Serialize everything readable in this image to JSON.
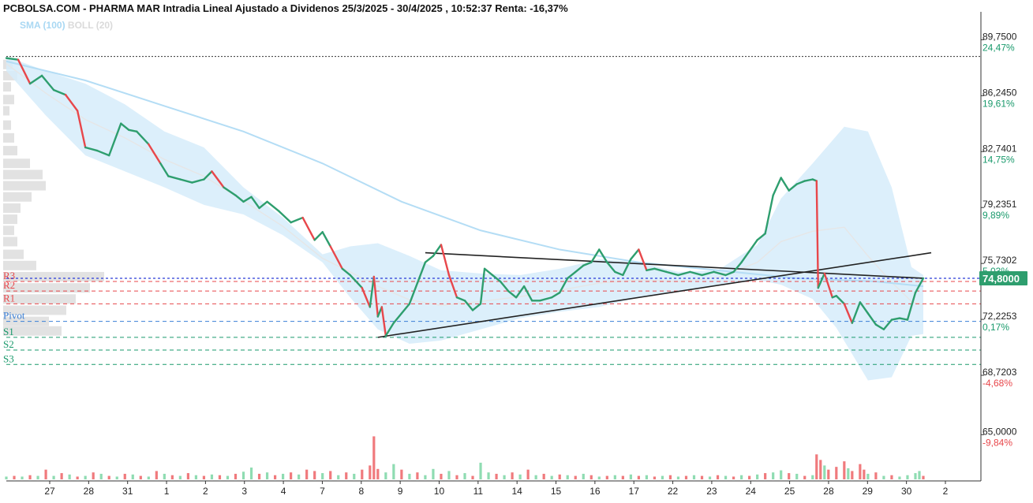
{
  "chart_data": {
    "type": "line",
    "title": "PCBOLSA.COM - PHARMA MAR Intradia Lineal Ajustado a Dividenos 25/3/2025 - 30/4/2025 , 10:52:37 Renta: -16,37%",
    "legend": {
      "sma": "SMA (100)",
      "boll": "BOLL (20)"
    },
    "ylim": [
      62.1,
      91.5
    ],
    "y_ticks": [
      {
        "value": 89.75,
        "label": "89,7500",
        "pct": "24,47%",
        "pct_color": "#1a9a6c"
      },
      {
        "value": 86.245,
        "label": "86,2450",
        "pct": "19,61%",
        "pct_color": "#1a9a6c"
      },
      {
        "value": 82.7401,
        "label": "82,7401",
        "pct": "14,75%",
        "pct_color": "#1a9a6c"
      },
      {
        "value": 79.2351,
        "label": "79,2351",
        "pct": "9,89%",
        "pct_color": "#1a9a6c"
      },
      {
        "value": 75.7302,
        "label": "75,7302",
        "pct": "5,03%",
        "pct_color": "#1a9a6c"
      },
      {
        "value": 72.2253,
        "label": "72,2253",
        "pct": "0,17%",
        "pct_color": "#1a9a6c"
      },
      {
        "value": 68.7203,
        "label": "68,7203",
        "pct": "-4,68%",
        "pct_color": "#e8474b"
      },
      {
        "value": 65.0,
        "label": "65,0000",
        "pct": "-9,84%",
        "pct_color": "#e8474b"
      }
    ],
    "last_price": {
      "value": 74.8,
      "label": "74,8000"
    },
    "reference_high": 88.7,
    "pivot_levels": [
      {
        "name": "R3",
        "value": 74.6,
        "color": "#e8474b"
      },
      {
        "name": "R2",
        "value": 74.0,
        "color": "#e8474b"
      },
      {
        "name": "R1",
        "value": 73.2,
        "color": "#e8474b"
      },
      {
        "name": "Pivot",
        "value": 72.1,
        "color": "#3a7fd6"
      },
      {
        "name": "S1",
        "value": 71.1,
        "color": "#1a9a6c"
      },
      {
        "name": "S2",
        "value": 70.3,
        "color": "#1a9a6c"
      },
      {
        "name": "S3",
        "value": 69.4,
        "color": "#1a9a6c"
      }
    ],
    "x_labels": [
      "27",
      "28",
      "31",
      "1",
      "2",
      "3",
      "4",
      "7",
      "8",
      "9",
      "10",
      "11",
      "14",
      "15",
      "16",
      "17",
      "22",
      "23",
      "24",
      "25",
      "28",
      "29",
      "30",
      "2"
    ],
    "price_series": [
      [
        0,
        88.6
      ],
      [
        0.15,
        88.5
      ],
      [
        0.3,
        87.0
      ],
      [
        0.45,
        87.5
      ],
      [
        0.6,
        86.6
      ],
      [
        0.75,
        86.3
      ],
      [
        0.9,
        85.3
      ],
      [
        1.0,
        83.0
      ],
      [
        1.15,
        82.8
      ],
      [
        1.3,
        82.5
      ],
      [
        1.45,
        84.5
      ],
      [
        1.55,
        84.1
      ],
      [
        1.65,
        84.0
      ],
      [
        1.8,
        83.2
      ],
      [
        1.95,
        82.0
      ],
      [
        2.05,
        81.2
      ],
      [
        2.2,
        81.0
      ],
      [
        2.35,
        80.8
      ],
      [
        2.5,
        81.0
      ],
      [
        2.6,
        81.5
      ],
      [
        2.75,
        80.5
      ],
      [
        2.9,
        80.0
      ],
      [
        3.0,
        79.6
      ],
      [
        3.1,
        79.9
      ],
      [
        3.2,
        79.2
      ],
      [
        3.3,
        79.6
      ],
      [
        3.45,
        79.0
      ],
      [
        3.6,
        78.3
      ],
      [
        3.75,
        78.6
      ],
      [
        3.9,
        77.2
      ],
      [
        4.0,
        77.7
      ],
      [
        4.1,
        76.8
      ],
      [
        4.25,
        75.4
      ],
      [
        4.35,
        75.0
      ],
      [
        4.5,
        74.2
      ],
      [
        4.6,
        73.0
      ],
      [
        4.65,
        74.9
      ],
      [
        4.7,
        72.4
      ],
      [
        4.75,
        73.0
      ],
      [
        4.8,
        71.2
      ],
      [
        4.9,
        72.0
      ],
      [
        5.0,
        72.6
      ],
      [
        5.1,
        73.2
      ],
      [
        5.2,
        74.5
      ],
      [
        5.3,
        75.8
      ],
      [
        5.4,
        76.2
      ],
      [
        5.5,
        76.9
      ],
      [
        5.6,
        75.0
      ],
      [
        5.7,
        73.6
      ],
      [
        5.8,
        73.4
      ],
      [
        5.9,
        72.8
      ],
      [
        6.0,
        73.2
      ],
      [
        6.05,
        75.4
      ],
      [
        6.15,
        75.0
      ],
      [
        6.25,
        74.6
      ],
      [
        6.35,
        74.0
      ],
      [
        6.45,
        73.6
      ],
      [
        6.55,
        74.3
      ],
      [
        6.65,
        73.4
      ],
      [
        6.75,
        73.4
      ],
      [
        6.9,
        73.6
      ],
      [
        7.0,
        73.9
      ],
      [
        7.1,
        74.8
      ],
      [
        7.2,
        75.2
      ],
      [
        7.3,
        75.6
      ],
      [
        7.4,
        75.8
      ],
      [
        7.5,
        76.6
      ],
      [
        7.6,
        75.8
      ],
      [
        7.7,
        75.2
      ],
      [
        7.8,
        75.0
      ],
      [
        7.9,
        76.0
      ],
      [
        8.0,
        76.6
      ],
      [
        8.1,
        75.3
      ],
      [
        8.2,
        75.4
      ],
      [
        8.35,
        75.2
      ],
      [
        8.5,
        75.0
      ],
      [
        8.65,
        75.2
      ],
      [
        8.8,
        75.0
      ],
      [
        8.95,
        75.2
      ],
      [
        9.1,
        75.0
      ],
      [
        9.2,
        75.2
      ],
      [
        9.3,
        75.8
      ],
      [
        9.4,
        76.5
      ],
      [
        9.5,
        77.2
      ],
      [
        9.6,
        77.6
      ],
      [
        9.7,
        80.0
      ],
      [
        9.8,
        81.1
      ],
      [
        9.9,
        80.3
      ],
      [
        10.0,
        80.7
      ],
      [
        10.1,
        80.9
      ],
      [
        10.2,
        81.0
      ],
      [
        10.25,
        80.9
      ],
      [
        10.27,
        74.2
      ],
      [
        10.35,
        75.1
      ],
      [
        10.45,
        73.6
      ],
      [
        10.5,
        73.7
      ],
      [
        10.6,
        73.2
      ],
      [
        10.7,
        72.0
      ],
      [
        10.8,
        73.3
      ],
      [
        10.9,
        72.6
      ],
      [
        11.0,
        71.9
      ],
      [
        11.1,
        71.6
      ],
      [
        11.2,
        72.2
      ],
      [
        11.3,
        72.3
      ],
      [
        11.4,
        72.2
      ],
      [
        11.5,
        73.9
      ],
      [
        11.6,
        74.8
      ]
    ],
    "bollinger_upper": [
      [
        0,
        88.7
      ],
      [
        0.5,
        87.8
      ],
      [
        1.0,
        87.0
      ],
      [
        1.5,
        85.7
      ],
      [
        2.0,
        84.0
      ],
      [
        2.5,
        83.0
      ],
      [
        3.0,
        80.5
      ],
      [
        3.5,
        78.6
      ],
      [
        4.0,
        76.3
      ],
      [
        4.35,
        76.8
      ],
      [
        4.7,
        77.0
      ],
      [
        5.1,
        76.2
      ],
      [
        5.5,
        75.3
      ],
      [
        6.0,
        75.1
      ],
      [
        6.5,
        75.0
      ],
      [
        7.0,
        75.4
      ],
      [
        7.5,
        76.0
      ],
      [
        8.0,
        75.8
      ],
      [
        8.5,
        75.2
      ],
      [
        9.0,
        75.3
      ],
      [
        9.5,
        76.9
      ],
      [
        9.8,
        79.8
      ],
      [
        10.2,
        82.0
      ],
      [
        10.6,
        84.3
      ],
      [
        10.9,
        84.0
      ],
      [
        11.2,
        80.5
      ],
      [
        11.45,
        75.5
      ],
      [
        11.6,
        75.0
      ]
    ],
    "bollinger_lower": [
      [
        0,
        87.8
      ],
      [
        0.5,
        85.0
      ],
      [
        1.0,
        82.5
      ],
      [
        1.5,
        81.5
      ],
      [
        2.0,
        80.5
      ],
      [
        2.5,
        79.4
      ],
      [
        3.0,
        78.8
      ],
      [
        3.5,
        77.5
      ],
      [
        4.0,
        75.8
      ],
      [
        4.35,
        73.6
      ],
      [
        4.7,
        71.6
      ],
      [
        5.1,
        70.7
      ],
      [
        5.5,
        70.9
      ],
      [
        6.0,
        71.6
      ],
      [
        6.5,
        72.3
      ],
      [
        7.0,
        72.7
      ],
      [
        7.5,
        73.0
      ],
      [
        8.0,
        73.6
      ],
      [
        8.5,
        74.0
      ],
      [
        9.0,
        74.4
      ],
      [
        9.5,
        74.7
      ],
      [
        9.8,
        74.4
      ],
      [
        10.2,
        73.5
      ],
      [
        10.5,
        71.7
      ],
      [
        10.9,
        68.4
      ],
      [
        11.2,
        68.6
      ],
      [
        11.45,
        71.2
      ],
      [
        11.6,
        71.3
      ]
    ],
    "sma_series": [
      [
        0,
        88.4
      ],
      [
        1,
        87.2
      ],
      [
        2,
        85.6
      ],
      [
        3,
        84.0
      ],
      [
        4,
        82.0
      ],
      [
        5,
        79.6
      ],
      [
        6,
        77.8
      ],
      [
        7,
        76.6
      ],
      [
        8,
        75.8
      ],
      [
        9,
        75.3
      ],
      [
        10,
        74.8
      ],
      [
        11,
        74.6
      ],
      [
        11.6,
        74.3
      ]
    ],
    "trendlines": [
      {
        "from": [
          4.7,
          71.1
        ],
        "to": [
          11.7,
          76.4
        ]
      },
      {
        "from": [
          5.3,
          76.4
        ],
        "to": [
          11.6,
          74.8
        ]
      }
    ],
    "volume_scale_max": 100,
    "volume": [
      [
        0,
        4,
        "g"
      ],
      [
        0.1,
        5,
        "r"
      ],
      [
        0.2,
        4,
        "g"
      ],
      [
        0.3,
        6,
        "r"
      ],
      [
        0.4,
        5,
        "g"
      ],
      [
        0.5,
        14,
        "r"
      ],
      [
        0.6,
        5,
        "g"
      ],
      [
        0.7,
        9,
        "r"
      ],
      [
        0.8,
        7,
        "g"
      ],
      [
        0.9,
        4,
        "r"
      ],
      [
        1.0,
        5,
        "g"
      ],
      [
        1.1,
        10,
        "r"
      ],
      [
        1.2,
        8,
        "g"
      ],
      [
        1.3,
        5,
        "r"
      ],
      [
        1.4,
        4,
        "g"
      ],
      [
        1.5,
        8,
        "r"
      ],
      [
        1.6,
        7,
        "g"
      ],
      [
        1.7,
        5,
        "r"
      ],
      [
        1.8,
        4,
        "g"
      ],
      [
        1.9,
        12,
        "r"
      ],
      [
        2.0,
        8,
        "g"
      ],
      [
        2.1,
        6,
        "r"
      ],
      [
        2.2,
        5,
        "g"
      ],
      [
        2.3,
        9,
        "r"
      ],
      [
        2.4,
        6,
        "g"
      ],
      [
        2.5,
        5,
        "r"
      ],
      [
        2.6,
        7,
        "g"
      ],
      [
        2.7,
        6,
        "r"
      ],
      [
        2.8,
        5,
        "g"
      ],
      [
        2.9,
        8,
        "r"
      ],
      [
        3.0,
        11,
        "g"
      ],
      [
        3.1,
        17,
        "g"
      ],
      [
        3.2,
        8,
        "r"
      ],
      [
        3.3,
        10,
        "g"
      ],
      [
        3.4,
        6,
        "r"
      ],
      [
        3.5,
        8,
        "g"
      ],
      [
        3.6,
        10,
        "r"
      ],
      [
        3.7,
        7,
        "g"
      ],
      [
        3.8,
        14,
        "r"
      ],
      [
        3.9,
        12,
        "r"
      ],
      [
        4.0,
        9,
        "g"
      ],
      [
        4.1,
        12,
        "r"
      ],
      [
        4.2,
        6,
        "g"
      ],
      [
        4.3,
        10,
        "r"
      ],
      [
        4.4,
        8,
        "g"
      ],
      [
        4.5,
        14,
        "r"
      ],
      [
        4.6,
        20,
        "r"
      ],
      [
        4.65,
        62,
        "r"
      ],
      [
        4.7,
        15,
        "r"
      ],
      [
        4.8,
        10,
        "g"
      ],
      [
        4.9,
        22,
        "g"
      ],
      [
        5.0,
        14,
        "r"
      ],
      [
        5.1,
        8,
        "g"
      ],
      [
        5.2,
        10,
        "r"
      ],
      [
        5.3,
        6,
        "g"
      ],
      [
        5.4,
        15,
        "g"
      ],
      [
        5.5,
        8,
        "r"
      ],
      [
        5.6,
        12,
        "g"
      ],
      [
        5.7,
        6,
        "r"
      ],
      [
        5.8,
        9,
        "g"
      ],
      [
        5.9,
        5,
        "r"
      ],
      [
        6.0,
        24,
        "g"
      ],
      [
        6.1,
        10,
        "g"
      ],
      [
        6.2,
        8,
        "r"
      ],
      [
        6.3,
        6,
        "g"
      ],
      [
        6.4,
        10,
        "r"
      ],
      [
        6.5,
        7,
        "g"
      ],
      [
        6.6,
        14,
        "r"
      ],
      [
        6.7,
        6,
        "g"
      ],
      [
        6.8,
        8,
        "r"
      ],
      [
        6.9,
        5,
        "g"
      ],
      [
        7.0,
        7,
        "r"
      ],
      [
        7.1,
        6,
        "g"
      ],
      [
        7.2,
        5,
        "r"
      ],
      [
        7.3,
        8,
        "g"
      ],
      [
        7.4,
        6,
        "r"
      ],
      [
        7.5,
        4,
        "g"
      ],
      [
        7.6,
        5,
        "r"
      ],
      [
        7.7,
        6,
        "g"
      ],
      [
        7.8,
        5,
        "r"
      ],
      [
        7.9,
        7,
        "g"
      ],
      [
        8.0,
        5,
        "r"
      ],
      [
        8.1,
        6,
        "g"
      ],
      [
        8.2,
        4,
        "r"
      ],
      [
        8.3,
        5,
        "g"
      ],
      [
        8.4,
        6,
        "r"
      ],
      [
        8.5,
        4,
        "g"
      ],
      [
        8.6,
        5,
        "r"
      ],
      [
        8.7,
        6,
        "g"
      ],
      [
        8.8,
        5,
        "r"
      ],
      [
        8.9,
        4,
        "g"
      ],
      [
        9.0,
        6,
        "r"
      ],
      [
        9.1,
        5,
        "g"
      ],
      [
        9.2,
        4,
        "r"
      ],
      [
        9.3,
        6,
        "g"
      ],
      [
        9.4,
        5,
        "r"
      ],
      [
        9.5,
        7,
        "g"
      ],
      [
        9.6,
        9,
        "r"
      ],
      [
        9.7,
        10,
        "g"
      ],
      [
        9.8,
        13,
        "g"
      ],
      [
        9.9,
        9,
        "r"
      ],
      [
        10.0,
        8,
        "g"
      ],
      [
        10.1,
        5,
        "r"
      ],
      [
        10.2,
        6,
        "g"
      ],
      [
        10.25,
        36,
        "r"
      ],
      [
        10.3,
        28,
        "r"
      ],
      [
        10.35,
        20,
        "g"
      ],
      [
        10.4,
        14,
        "r"
      ],
      [
        10.5,
        18,
        "r"
      ],
      [
        10.6,
        26,
        "r"
      ],
      [
        10.65,
        16,
        "g"
      ],
      [
        10.7,
        12,
        "r"
      ],
      [
        10.8,
        22,
        "r"
      ],
      [
        10.85,
        14,
        "r"
      ],
      [
        10.9,
        8,
        "g"
      ],
      [
        11.0,
        10,
        "r"
      ],
      [
        11.1,
        5,
        "g"
      ],
      [
        11.2,
        6,
        "r"
      ],
      [
        11.3,
        4,
        "g"
      ],
      [
        11.4,
        6,
        "g"
      ],
      [
        11.5,
        9,
        "g"
      ],
      [
        11.55,
        12,
        "g"
      ],
      [
        11.6,
        5,
        "r"
      ]
    ],
    "volume_profile": [
      {
        "value": 88.2,
        "w": 12
      },
      {
        "value": 87.5,
        "w": 18
      },
      {
        "value": 86.8,
        "w": 10
      },
      {
        "value": 86.0,
        "w": 14
      },
      {
        "value": 85.3,
        "w": 8
      },
      {
        "value": 84.4,
        "w": 10
      },
      {
        "value": 83.6,
        "w": 14
      },
      {
        "value": 82.8,
        "w": 18
      },
      {
        "value": 82.0,
        "w": 34
      },
      {
        "value": 81.3,
        "w": 50
      },
      {
        "value": 80.6,
        "w": 54
      },
      {
        "value": 79.9,
        "w": 36
      },
      {
        "value": 79.2,
        "w": 22
      },
      {
        "value": 78.5,
        "w": 18
      },
      {
        "value": 77.8,
        "w": 14
      },
      {
        "value": 77.1,
        "w": 18
      },
      {
        "value": 76.3,
        "w": 26
      },
      {
        "value": 75.6,
        "w": 42
      },
      {
        "value": 74.9,
        "w": 128
      },
      {
        "value": 74.2,
        "w": 110
      },
      {
        "value": 73.5,
        "w": 92
      },
      {
        "value": 72.8,
        "w": 80
      },
      {
        "value": 72.1,
        "w": 58
      },
      {
        "value": 71.5,
        "w": 74
      }
    ]
  }
}
